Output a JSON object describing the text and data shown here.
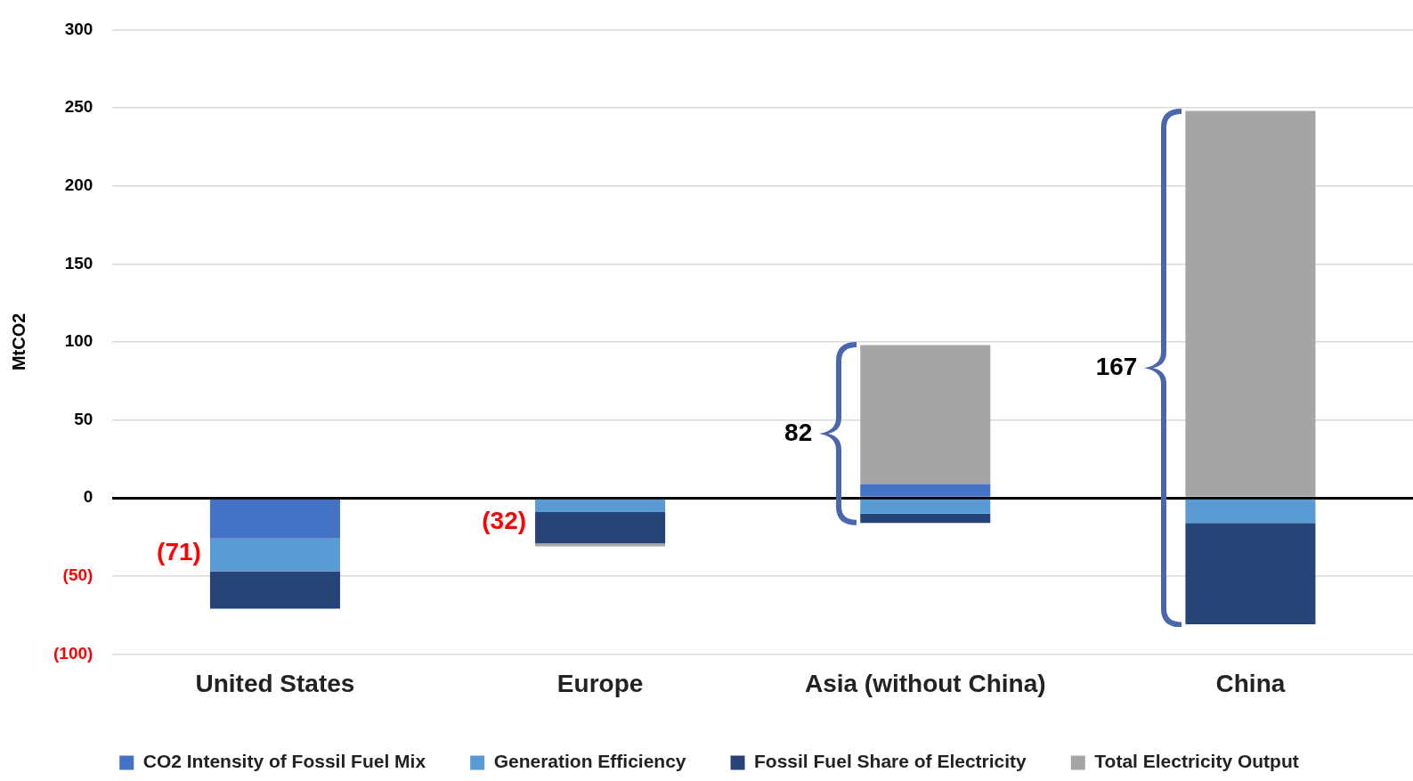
{
  "chart_data": {
    "type": "bar",
    "stacked": true,
    "ylabel": "MtCO2",
    "categories": [
      "United States",
      "Europe",
      "Asia (without China)",
      "China"
    ],
    "series": [
      {
        "name": "CO2 Intensity of Fossil Fuel Mix",
        "color": "#4472c4",
        "values": [
          -26,
          null,
          9,
          0
        ]
      },
      {
        "name": "Generation Efficiency",
        "color": "#5b9bd5",
        "values": [
          -21,
          -9,
          -10,
          -16
        ]
      },
      {
        "name": "Fossil Fuel Share of Electricity",
        "color": "#264478",
        "values": [
          -24,
          -20,
          -6,
          -65
        ]
      },
      {
        "name": "Total Electricity Output",
        "color": "#a5a5a5",
        "values": [
          0,
          -2,
          89,
          248
        ]
      }
    ],
    "ylim": [
      -100,
      300
    ],
    "yticks": [
      {
        "value": -100,
        "label": "(100)"
      },
      {
        "value": -50,
        "label": "(50)"
      },
      0,
      50,
      100,
      150,
      200,
      250,
      300
    ],
    "grid": "y",
    "legend": "bottom",
    "annotations": [
      "(71)",
      "(32)",
      "82",
      "167"
    ]
  }
}
